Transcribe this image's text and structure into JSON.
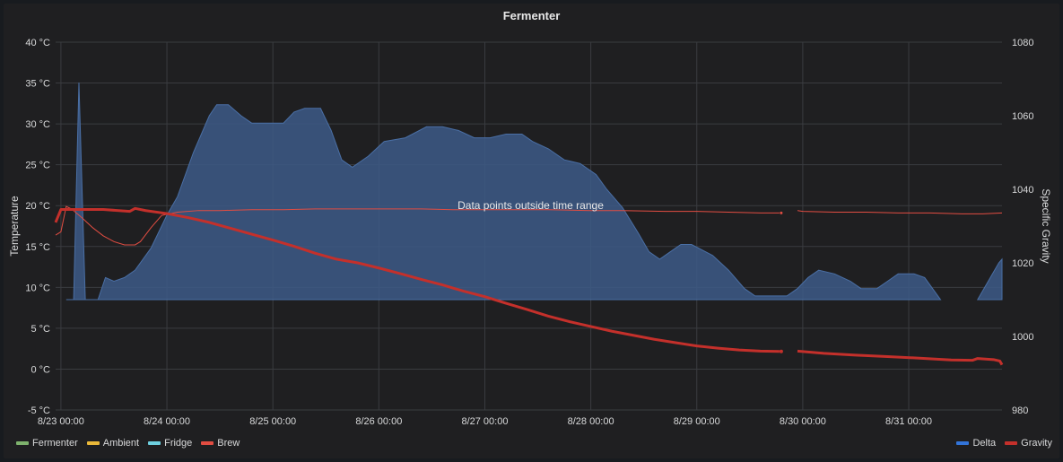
{
  "panel": {
    "title": "Fermenter"
  },
  "chart_data": {
    "type": "line",
    "title": "Fermenter",
    "annotation": "Data points outside time range",
    "x": {
      "ticks": [
        {
          "label": "8/23 00:00",
          "t": 0
        },
        {
          "label": "8/24 00:00",
          "t": 1
        },
        {
          "label": "8/25 00:00",
          "t": 2
        },
        {
          "label": "8/26 00:00",
          "t": 3
        },
        {
          "label": "8/27 00:00",
          "t": 4
        },
        {
          "label": "8/28 00:00",
          "t": 5
        },
        {
          "label": "8/29 00:00",
          "t": 6
        },
        {
          "label": "8/30 00:00",
          "t": 7
        },
        {
          "label": "8/31 00:00",
          "t": 8
        }
      ],
      "range": [
        -0.05,
        8.88
      ]
    },
    "y_left": {
      "label": "Temperature",
      "unit": "°C",
      "range": [
        -5,
        40
      ],
      "ticks": [
        {
          "label": "-5 °C",
          "v": -5
        },
        {
          "label": "0 °C",
          "v": 0
        },
        {
          "label": "5 °C",
          "v": 5
        },
        {
          "label": "10 °C",
          "v": 10
        },
        {
          "label": "15 °C",
          "v": 15
        },
        {
          "label": "20 °C",
          "v": 20
        },
        {
          "label": "25 °C",
          "v": 25
        },
        {
          "label": "30 °C",
          "v": 30
        },
        {
          "label": "35 °C",
          "v": 35
        },
        {
          "label": "40 °C",
          "v": 40
        }
      ]
    },
    "y_right": {
      "label": "Specific Gravity",
      "range": [
        980,
        1080
      ],
      "ticks": [
        {
          "label": "980",
          "v": 980
        },
        {
          "label": "1000",
          "v": 1000
        },
        {
          "label": "1020",
          "v": 1020
        },
        {
          "label": "1040",
          "v": 1040
        },
        {
          "label": "1060",
          "v": 1060
        },
        {
          "label": "1080",
          "v": 1080
        }
      ]
    },
    "grid": true,
    "series_left": [
      {
        "name": "Fermenter",
        "color": "#7eb26d",
        "points": []
      },
      {
        "name": "Ambient",
        "color": "#eab839",
        "points": []
      },
      {
        "name": "Fridge",
        "color": "#6ed0e0",
        "points": []
      },
      {
        "name": "Brew",
        "color": "#e24d42",
        "points": [
          [
            -0.05,
            16.4
          ],
          [
            0.0,
            16.8
          ],
          [
            0.05,
            19.9
          ],
          [
            0.1,
            19.6
          ],
          [
            0.2,
            18.5
          ],
          [
            0.3,
            17.3
          ],
          [
            0.4,
            16.3
          ],
          [
            0.5,
            15.6
          ],
          [
            0.6,
            15.2
          ],
          [
            0.7,
            15.2
          ],
          [
            0.75,
            15.6
          ],
          [
            0.85,
            17.3
          ],
          [
            0.95,
            18.8
          ],
          [
            1.1,
            19.2
          ],
          [
            1.3,
            19.4
          ],
          [
            1.5,
            19.4
          ],
          [
            1.8,
            19.5
          ],
          [
            2.1,
            19.5
          ],
          [
            2.4,
            19.6
          ],
          [
            2.7,
            19.6
          ],
          [
            3.0,
            19.6
          ],
          [
            3.4,
            19.6
          ],
          [
            3.7,
            19.5
          ],
          [
            4.0,
            19.5
          ],
          [
            4.3,
            19.5
          ],
          [
            4.6,
            19.5
          ],
          [
            5.0,
            19.4
          ],
          [
            5.3,
            19.4
          ],
          [
            5.7,
            19.3
          ],
          [
            6.0,
            19.3
          ],
          [
            6.3,
            19.2
          ],
          [
            6.6,
            19.1
          ],
          [
            6.78,
            19.1
          ],
          null,
          [
            6.95,
            19.4
          ],
          [
            7.0,
            19.3
          ],
          [
            7.3,
            19.2
          ],
          [
            7.6,
            19.2
          ],
          [
            7.9,
            19.1
          ],
          [
            8.2,
            19.1
          ],
          [
            8.5,
            19.0
          ],
          [
            8.7,
            19.0
          ],
          [
            8.88,
            19.1
          ]
        ]
      }
    ],
    "series_right": [
      {
        "name": "Delta",
        "color": "#3d5a87",
        "type": "area",
        "baseline": 1010,
        "points": [
          [
            0.05,
            1010
          ],
          [
            0.12,
            1010
          ],
          [
            0.17,
            1069
          ],
          [
            0.23,
            1010
          ],
          [
            0.35,
            1010
          ],
          [
            0.42,
            1016
          ],
          [
            0.5,
            1015
          ],
          [
            0.6,
            1016
          ],
          [
            0.7,
            1018
          ],
          [
            0.85,
            1024
          ],
          [
            1.0,
            1033
          ],
          [
            1.1,
            1038
          ],
          [
            1.25,
            1050
          ],
          [
            1.4,
            1060
          ],
          [
            1.47,
            1063
          ],
          [
            1.58,
            1063
          ],
          [
            1.7,
            1060
          ],
          [
            1.8,
            1058
          ],
          [
            1.9,
            1058
          ],
          [
            2.1,
            1058
          ],
          [
            2.2,
            1061
          ],
          [
            2.3,
            1062
          ],
          [
            2.45,
            1062
          ],
          [
            2.55,
            1056
          ],
          [
            2.65,
            1048
          ],
          [
            2.75,
            1046
          ],
          [
            2.9,
            1049
          ],
          [
            3.05,
            1053
          ],
          [
            3.25,
            1054
          ],
          [
            3.45,
            1057
          ],
          [
            3.6,
            1057
          ],
          [
            3.75,
            1056
          ],
          [
            3.9,
            1054
          ],
          [
            4.05,
            1054
          ],
          [
            4.2,
            1055
          ],
          [
            4.35,
            1055
          ],
          [
            4.45,
            1053
          ],
          [
            4.6,
            1051
          ],
          [
            4.75,
            1048
          ],
          [
            4.9,
            1047
          ],
          [
            5.05,
            1044
          ],
          [
            5.15,
            1040
          ],
          [
            5.3,
            1035
          ],
          [
            5.45,
            1028
          ],
          [
            5.55,
            1023
          ],
          [
            5.65,
            1021
          ],
          [
            5.75,
            1023
          ],
          [
            5.85,
            1025
          ],
          [
            5.95,
            1025
          ],
          [
            6.15,
            1022
          ],
          [
            6.3,
            1018
          ],
          [
            6.45,
            1013
          ],
          [
            6.55,
            1011
          ],
          [
            6.65,
            1011
          ],
          [
            6.75,
            1011
          ],
          [
            6.85,
            1011
          ],
          [
            6.95,
            1013
          ],
          [
            7.05,
            1016
          ],
          [
            7.15,
            1018
          ],
          [
            7.3,
            1017
          ],
          [
            7.45,
            1015
          ],
          [
            7.55,
            1013
          ],
          [
            7.7,
            1013
          ],
          [
            7.8,
            1015
          ],
          [
            7.9,
            1017
          ],
          [
            8.05,
            1017
          ],
          [
            8.15,
            1016
          ],
          [
            8.2,
            1014
          ],
          [
            8.3,
            1010
          ],
          null,
          [
            8.65,
            1010
          ],
          [
            8.75,
            1015
          ],
          [
            8.85,
            1020
          ],
          [
            8.88,
            1021
          ],
          [
            8.88,
            1010
          ]
        ]
      },
      {
        "name": "Gravity",
        "color": "#c4302b",
        "type": "line",
        "points": [
          [
            -0.05,
            1031
          ],
          [
            0.0,
            1034.5
          ],
          [
            0.4,
            1034.5
          ],
          [
            0.65,
            1034
          ],
          [
            0.7,
            1034.8
          ],
          [
            0.8,
            1034.2
          ],
          [
            1.0,
            1033.4
          ],
          [
            1.2,
            1032.3
          ],
          [
            1.4,
            1031
          ],
          [
            1.6,
            1029.4
          ],
          [
            1.8,
            1027.8
          ],
          [
            2.0,
            1026.2
          ],
          [
            2.2,
            1024.5
          ],
          [
            2.4,
            1022.6
          ],
          [
            2.6,
            1021
          ],
          [
            2.8,
            1020
          ],
          [
            3.0,
            1018.6
          ],
          [
            3.2,
            1017.1
          ],
          [
            3.4,
            1015.5
          ],
          [
            3.6,
            1014
          ],
          [
            3.8,
            1012.3
          ],
          [
            4.0,
            1010.8
          ],
          [
            4.2,
            1009
          ],
          [
            4.4,
            1007.3
          ],
          [
            4.6,
            1005.5
          ],
          [
            4.8,
            1004
          ],
          [
            5.0,
            1002.7
          ],
          [
            5.2,
            1001.4
          ],
          [
            5.4,
            1000.3
          ],
          [
            5.6,
            999.2
          ],
          [
            5.8,
            998.3
          ],
          [
            6.0,
            997.4
          ],
          [
            6.2,
            996.8
          ],
          [
            6.4,
            996.3
          ],
          [
            6.6,
            996
          ],
          [
            6.78,
            995.9
          ],
          null,
          [
            6.95,
            996
          ],
          [
            7.2,
            995.4
          ],
          [
            7.5,
            994.9
          ],
          [
            7.8,
            994.5
          ],
          [
            8.1,
            994.1
          ],
          [
            8.4,
            993.6
          ],
          [
            8.6,
            993.5
          ],
          [
            8.65,
            994
          ],
          [
            8.8,
            993.7
          ],
          [
            8.86,
            993.3
          ],
          [
            8.88,
            992.3
          ]
        ]
      }
    ],
    "legend_left": [
      {
        "name": "Fermenter",
        "color": "#7eb26d"
      },
      {
        "name": "Ambient",
        "color": "#eab839"
      },
      {
        "name": "Fridge",
        "color": "#6ed0e0"
      },
      {
        "name": "Brew",
        "color": "#e24d42"
      }
    ],
    "legend_right": [
      {
        "name": "Delta",
        "color": "#3274d9"
      },
      {
        "name": "Gravity",
        "color": "#c4302b"
      }
    ]
  }
}
